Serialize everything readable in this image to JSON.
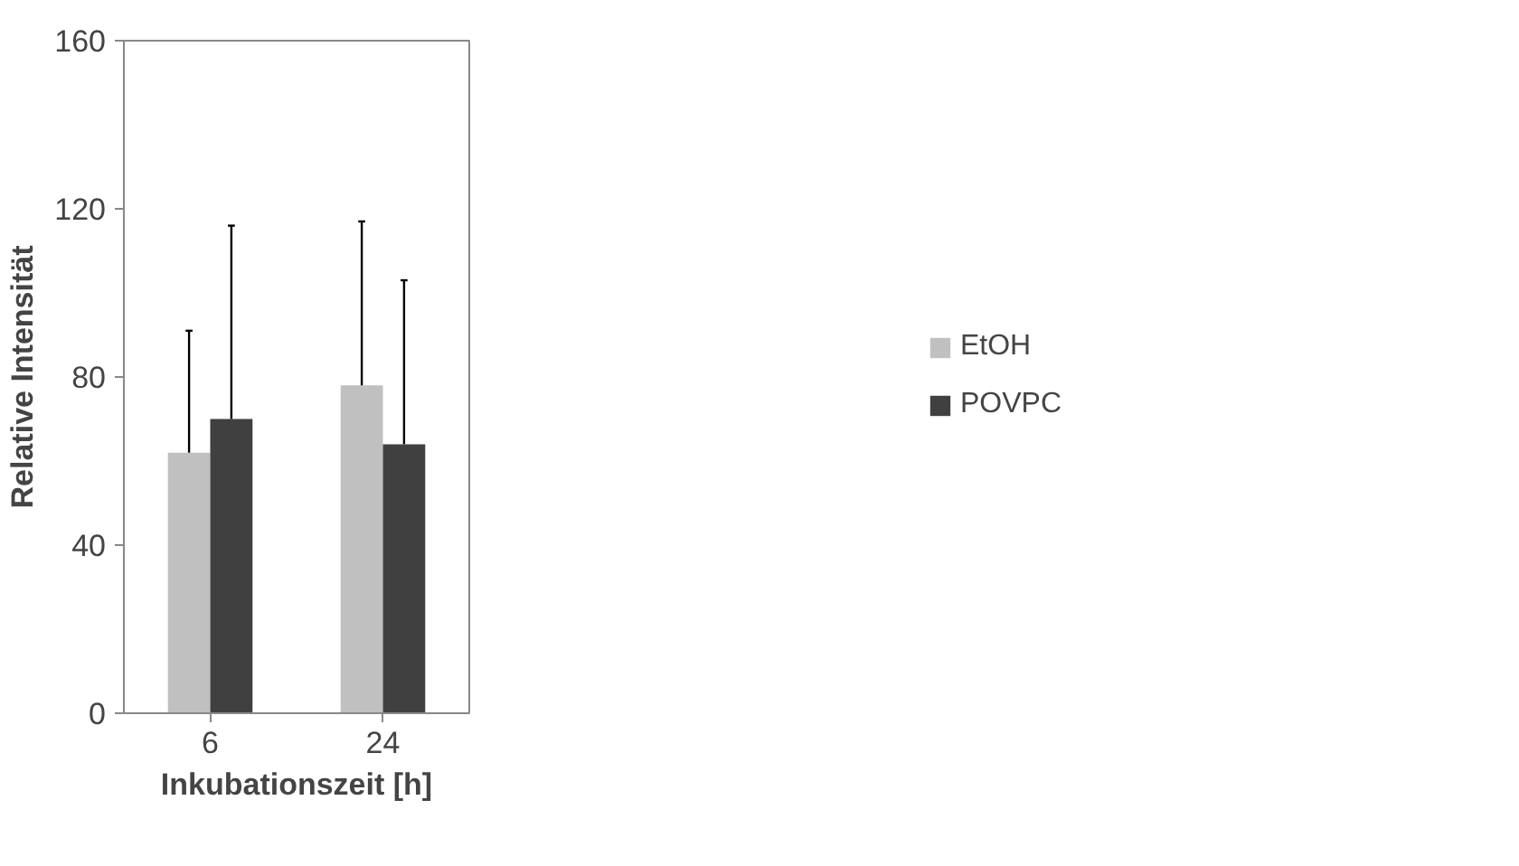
{
  "chart_data": {
    "type": "bar",
    "xlabel": "Inkubationszeit [h]",
    "ylabel": "Relative Intensität",
    "categories": [
      "6",
      "24"
    ],
    "series": [
      {
        "name": "EtOH",
        "color": "#c0c0c0",
        "values": [
          62,
          78
        ],
        "errors": [
          [
            62,
            91
          ],
          [
            78,
            117
          ]
        ]
      },
      {
        "name": "POVPC",
        "color": "#404040",
        "values": [
          70,
          64
        ],
        "errors": [
          [
            70,
            116
          ],
          [
            64,
            103
          ]
        ]
      }
    ],
    "ylim": [
      0,
      160
    ],
    "yticks": [
      0,
      40,
      80,
      120,
      160
    ],
    "grid": false,
    "legend": "right"
  }
}
